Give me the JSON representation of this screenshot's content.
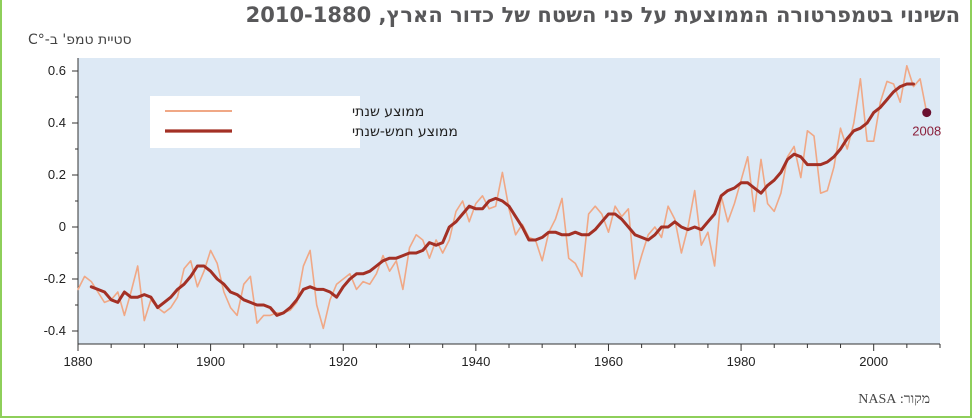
{
  "page": {
    "title": "השינוי בטמפרטורה הממוצעת על פני השטח של כדור הארץ, 2010-1880",
    "source": "מקור: NASA"
  },
  "chart_data": {
    "type": "line",
    "title": "השינוי בטמפרטורה הממוצעת על פני השטח של כדור הארץ, 2010-1880",
    "ylabel": "סטיית טמפ' ב-°C",
    "xlabel": "",
    "xlim": [
      1880,
      2010
    ],
    "ylim": [
      -0.45,
      0.65
    ],
    "xticks": [
      "1880",
      "1900",
      "1920",
      "1940",
      "1960",
      "1980",
      "2000"
    ],
    "yticks": [
      "0.6",
      "0.4",
      "0.2",
      "0",
      "-0.2",
      "-0.4"
    ],
    "grid": false,
    "background_color": "#dde9f5",
    "legend_position": "top-left",
    "annotation": {
      "label": "2008",
      "x": 2008,
      "y": 0.44,
      "color": "#6a1030"
    },
    "series": [
      {
        "name": "ממוצע שנתי",
        "color": "#f0a886",
        "x": [
          1880,
          1881,
          1882,
          1883,
          1884,
          1885,
          1886,
          1887,
          1888,
          1889,
          1890,
          1891,
          1892,
          1893,
          1894,
          1895,
          1896,
          1897,
          1898,
          1899,
          1900,
          1901,
          1902,
          1903,
          1904,
          1905,
          1906,
          1907,
          1908,
          1909,
          1910,
          1911,
          1912,
          1913,
          1914,
          1915,
          1916,
          1917,
          1918,
          1919,
          1920,
          1921,
          1922,
          1923,
          1924,
          1925,
          1926,
          1927,
          1928,
          1929,
          1930,
          1931,
          1932,
          1933,
          1934,
          1935,
          1936,
          1937,
          1938,
          1939,
          1940,
          1941,
          1942,
          1943,
          1944,
          1945,
          1946,
          1947,
          1948,
          1949,
          1950,
          1951,
          1952,
          1953,
          1954,
          1955,
          1956,
          1957,
          1958,
          1959,
          1960,
          1961,
          1962,
          1963,
          1964,
          1965,
          1966,
          1967,
          1968,
          1969,
          1970,
          1971,
          1972,
          1973,
          1974,
          1975,
          1976,
          1977,
          1978,
          1979,
          1980,
          1981,
          1982,
          1983,
          1984,
          1985,
          1986,
          1987,
          1988,
          1989,
          1990,
          1991,
          1992,
          1993,
          1994,
          1995,
          1996,
          1997,
          1998,
          1999,
          2000,
          2001,
          2002,
          2003,
          2004,
          2005,
          2006,
          2007,
          2008
        ],
        "values": [
          -0.24,
          -0.19,
          -0.21,
          -0.25,
          -0.29,
          -0.28,
          -0.25,
          -0.34,
          -0.25,
          -0.15,
          -0.36,
          -0.28,
          -0.31,
          -0.33,
          -0.31,
          -0.27,
          -0.16,
          -0.13,
          -0.23,
          -0.17,
          -0.09,
          -0.14,
          -0.25,
          -0.31,
          -0.34,
          -0.22,
          -0.19,
          -0.37,
          -0.34,
          -0.34,
          -0.33,
          -0.33,
          -0.32,
          -0.29,
          -0.15,
          -0.09,
          -0.3,
          -0.39,
          -0.28,
          -0.22,
          -0.2,
          -0.18,
          -0.24,
          -0.21,
          -0.22,
          -0.18,
          -0.11,
          -0.17,
          -0.13,
          -0.24,
          -0.08,
          -0.03,
          -0.05,
          -0.12,
          -0.05,
          -0.1,
          -0.05,
          0.06,
          0.1,
          0.02,
          0.09,
          0.12,
          0.07,
          0.08,
          0.21,
          0.07,
          -0.03,
          0.01,
          -0.04,
          -0.05,
          -0.13,
          -0.02,
          0.03,
          0.11,
          -0.12,
          -0.14,
          -0.19,
          0.05,
          0.08,
          0.05,
          -0.02,
          0.08,
          0.04,
          0.07,
          -0.2,
          -0.11,
          -0.03,
          0.0,
          -0.04,
          0.08,
          0.03,
          -0.1,
          0.0,
          0.14,
          -0.07,
          -0.02,
          -0.15,
          0.12,
          0.02,
          0.09,
          0.18,
          0.27,
          0.06,
          0.26,
          0.09,
          0.06,
          0.13,
          0.27,
          0.31,
          0.19,
          0.37,
          0.35,
          0.13,
          0.14,
          0.23,
          0.38,
          0.3,
          0.4,
          0.57,
          0.33,
          0.33,
          0.48,
          0.56,
          0.55,
          0.48,
          0.62,
          0.54,
          0.57,
          0.44
        ]
      },
      {
        "name": "ממוצע חמש-שנתי",
        "color": "#a33025",
        "x": [
          1882,
          1883,
          1884,
          1885,
          1886,
          1887,
          1888,
          1889,
          1890,
          1891,
          1892,
          1893,
          1894,
          1895,
          1896,
          1897,
          1898,
          1899,
          1900,
          1901,
          1902,
          1903,
          1904,
          1905,
          1906,
          1907,
          1908,
          1909,
          1910,
          1911,
          1912,
          1913,
          1914,
          1915,
          1916,
          1917,
          1918,
          1919,
          1920,
          1921,
          1922,
          1923,
          1924,
          1925,
          1926,
          1927,
          1928,
          1929,
          1930,
          1931,
          1932,
          1933,
          1934,
          1935,
          1936,
          1937,
          1938,
          1939,
          1940,
          1941,
          1942,
          1943,
          1944,
          1945,
          1946,
          1947,
          1948,
          1949,
          1950,
          1951,
          1952,
          1953,
          1954,
          1955,
          1956,
          1957,
          1958,
          1959,
          1960,
          1961,
          1962,
          1963,
          1964,
          1965,
          1966,
          1967,
          1968,
          1969,
          1970,
          1971,
          1972,
          1973,
          1974,
          1975,
          1976,
          1977,
          1978,
          1979,
          1980,
          1981,
          1982,
          1983,
          1984,
          1985,
          1986,
          1987,
          1988,
          1989,
          1990,
          1991,
          1992,
          1993,
          1994,
          1995,
          1996,
          1997,
          1998,
          1999,
          2000,
          2001,
          2002,
          2003,
          2004,
          2005,
          2006
        ],
        "values": [
          -0.23,
          -0.24,
          -0.25,
          -0.28,
          -0.29,
          -0.25,
          -0.27,
          -0.27,
          -0.26,
          -0.27,
          -0.31,
          -0.29,
          -0.27,
          -0.24,
          -0.22,
          -0.19,
          -0.15,
          -0.15,
          -0.17,
          -0.2,
          -0.22,
          -0.25,
          -0.26,
          -0.28,
          -0.29,
          -0.3,
          -0.3,
          -0.31,
          -0.34,
          -0.33,
          -0.31,
          -0.28,
          -0.24,
          -0.23,
          -0.24,
          -0.24,
          -0.25,
          -0.27,
          -0.23,
          -0.2,
          -0.18,
          -0.18,
          -0.17,
          -0.15,
          -0.13,
          -0.12,
          -0.12,
          -0.11,
          -0.1,
          -0.1,
          -0.09,
          -0.06,
          -0.07,
          -0.06,
          0.0,
          0.02,
          0.05,
          0.08,
          0.07,
          0.07,
          0.1,
          0.11,
          0.1,
          0.08,
          0.04,
          0.0,
          -0.05,
          -0.05,
          -0.04,
          -0.02,
          -0.02,
          -0.03,
          -0.03,
          -0.02,
          -0.03,
          -0.03,
          -0.01,
          0.02,
          0.05,
          0.05,
          0.03,
          0.0,
          -0.03,
          -0.04,
          -0.05,
          -0.03,
          0.0,
          0.0,
          0.02,
          0.0,
          -0.01,
          0.0,
          -0.01,
          0.02,
          0.05,
          0.12,
          0.14,
          0.15,
          0.17,
          0.17,
          0.15,
          0.13,
          0.16,
          0.18,
          0.21,
          0.26,
          0.28,
          0.27,
          0.24,
          0.24,
          0.24,
          0.25,
          0.27,
          0.3,
          0.34,
          0.37,
          0.38,
          0.4,
          0.44,
          0.46,
          0.49,
          0.52,
          0.54,
          0.55,
          0.55
        ]
      }
    ]
  }
}
